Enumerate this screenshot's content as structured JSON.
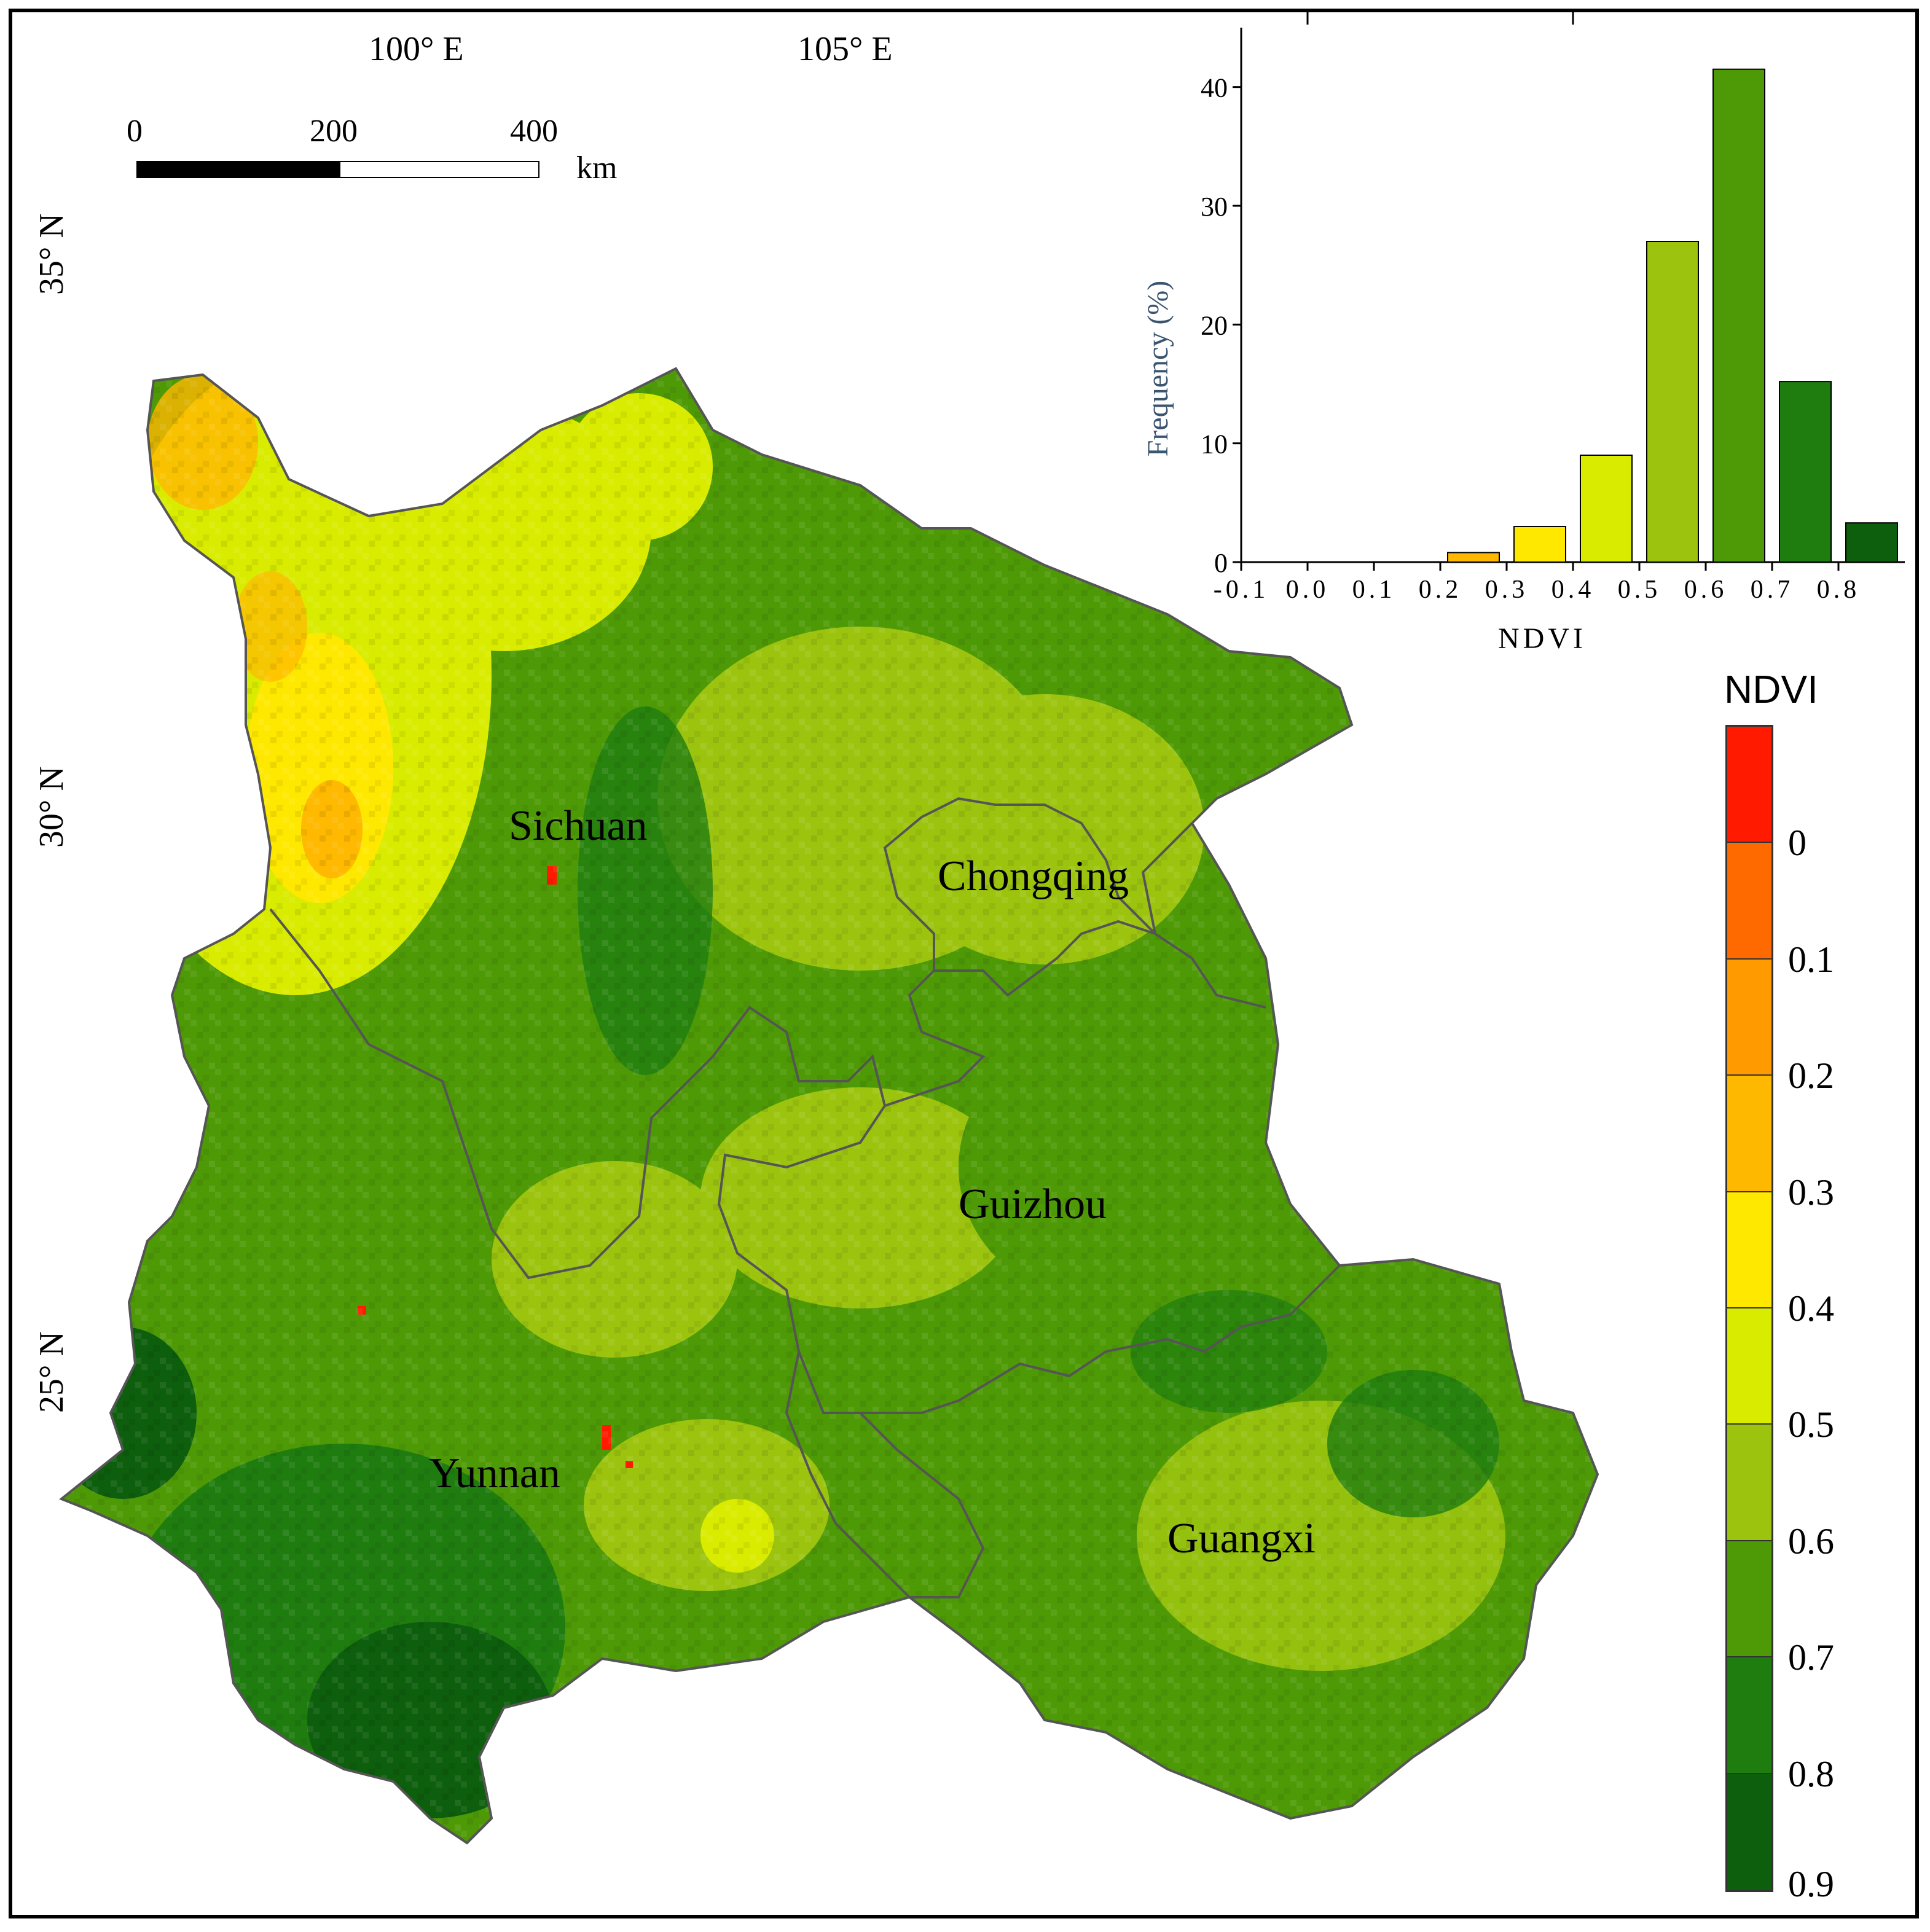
{
  "map": {
    "longitude_labels": [
      "100° E",
      "105° E"
    ],
    "latitude_labels": [
      "35° N",
      "30° N",
      "25° N"
    ],
    "provinces": [
      "Sichuan",
      "Chongqing",
      "Guizhou",
      "Yunnan",
      "Guangxi"
    ]
  },
  "scale_bar": {
    "ticks": [
      "0",
      "200",
      "400"
    ],
    "unit": "km"
  },
  "legend": {
    "title": "NDVI",
    "ticks": [
      "0",
      "0.1",
      "0.2",
      "0.3",
      "0.4",
      "0.5",
      "0.6",
      "0.7",
      "0.8",
      "0.9"
    ],
    "colors": [
      "#ff1a00",
      "#ff6a00",
      "#ff9a00",
      "#ffb800",
      "#ffe800",
      "#d9ec00",
      "#9cc40f",
      "#4e9a06",
      "#1f7d10",
      "#0d5e0d"
    ]
  },
  "chart_data": {
    "type": "bar",
    "xlabel": "NDVI",
    "ylabel": "Frequency (%)",
    "x_tick_labels": [
      "-0.1",
      "0.0",
      "0.1",
      "0.2",
      "0.3",
      "0.4",
      "0.5",
      "0.6",
      "0.7",
      "0.8"
    ],
    "y_tick_labels": [
      "0",
      "10",
      "20",
      "30",
      "40"
    ],
    "ylim": [
      0,
      45
    ],
    "bins": [
      {
        "from": 0.2,
        "to": 0.3,
        "value": 0.8,
        "color": "#ffb800"
      },
      {
        "from": 0.3,
        "to": 0.4,
        "value": 3.0,
        "color": "#ffe800"
      },
      {
        "from": 0.4,
        "to": 0.5,
        "value": 9.0,
        "color": "#d9ec00"
      },
      {
        "from": 0.5,
        "to": 0.6,
        "value": 27.0,
        "color": "#9cc40f"
      },
      {
        "from": 0.6,
        "to": 0.7,
        "value": 41.5,
        "color": "#4e9a06"
      },
      {
        "from": 0.7,
        "to": 0.8,
        "value": 15.2,
        "color": "#1f7d10"
      },
      {
        "from": 0.8,
        "to": 0.9,
        "value": 3.3,
        "color": "#0d5e0d"
      }
    ]
  }
}
